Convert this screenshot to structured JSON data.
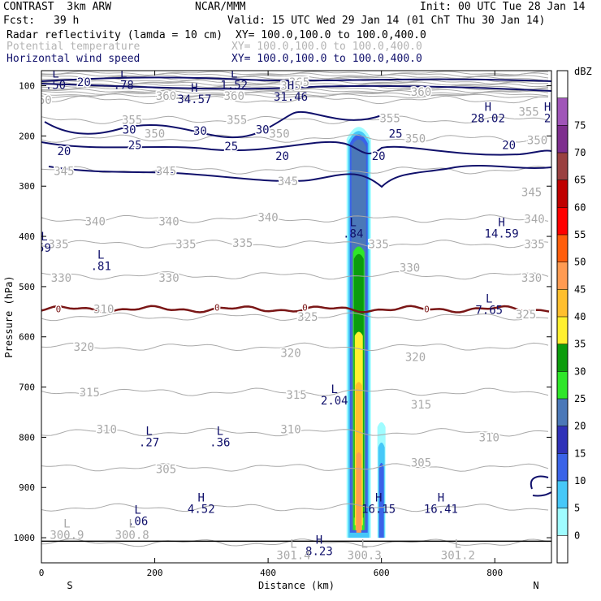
{
  "header": {
    "model": "CONTRAST  3km ARW",
    "org": "NCAR/MMM",
    "init": "Init: 00 UTC Tue 28 Jan 14",
    "fcst_label": "Fcst:",
    "fcst_value": "39 h",
    "valid": "Valid: 15 UTC Wed 29 Jan 14 (01 ChT Thu 30 Jan 14)"
  },
  "fields": [
    {
      "name": "Radar reflectivity (lamda = 10 cm)",
      "xy": "XY= 100.0,100.0 to 100.0,400.0"
    },
    {
      "name": "Potential temperature",
      "xy": "XY= 100.0,100.0 to 100.0,400.0"
    },
    {
      "name": "Horizontal wind speed",
      "xy": "XY= 100.0,100.0 to 100.0,400.0"
    }
  ],
  "colors": {
    "navy": "#10106b",
    "theta": "#a9a9a9",
    "zero_line": "#7a1616"
  },
  "chart_data": {
    "type": "contour",
    "xlabel": "Distance (km)",
    "ylabel": "Pressure (hPa)",
    "xlim": [
      0,
      900
    ],
    "ylim": [
      1050,
      70
    ],
    "x_ticks": [
      0,
      200,
      400,
      600,
      800
    ],
    "y_ticks": [
      100,
      200,
      300,
      400,
      500,
      600,
      700,
      800,
      900,
      1000
    ],
    "orientation": {
      "left": "S",
      "right": "N"
    },
    "colorbar": {
      "unit": "dBZ",
      "levels": [
        0,
        5,
        10,
        15,
        20,
        25,
        30,
        35,
        40,
        45,
        50,
        55,
        60,
        65,
        70,
        75
      ],
      "colors": [
        "#ffffff",
        "#9ffcff",
        "#46c8f8",
        "#3a63e8",
        "#2f31b8",
        "#4b78b8",
        "#2fe629",
        "#0c9c0c",
        "#fff030",
        "#ffbf2e",
        "#ff9b52",
        "#ff5d0c",
        "#ff0000",
        "#bf0000",
        "#9a4040",
        "#7e2e8e",
        "#a055b8",
        "#ffffff"
      ]
    },
    "theta_labels": [
      {
        "x": 0,
        "p": 128,
        "text": "360"
      },
      {
        "x": 220,
        "p": 120,
        "text": "360"
      },
      {
        "x": 340,
        "p": 120,
        "text": "360"
      },
      {
        "x": 670,
        "p": 112,
        "text": "360"
      },
      {
        "x": 455,
        "p": 93,
        "text": "365"
      },
      {
        "x": 440,
        "p": 100,
        "text": "365"
      },
      {
        "x": 160,
        "p": 168,
        "text": "355"
      },
      {
        "x": 345,
        "p": 168,
        "text": "355"
      },
      {
        "x": 615,
        "p": 165,
        "text": "355"
      },
      {
        "x": 860,
        "p": 152,
        "text": "355"
      },
      {
        "x": 200,
        "p": 195,
        "text": "350"
      },
      {
        "x": 420,
        "p": 195,
        "text": "350"
      },
      {
        "x": 660,
        "p": 205,
        "text": "350"
      },
      {
        "x": 875,
        "p": 208,
        "text": "350"
      },
      {
        "x": 40,
        "p": 270,
        "text": "345"
      },
      {
        "x": 220,
        "p": 270,
        "text": "345"
      },
      {
        "x": 435,
        "p": 290,
        "text": "345"
      },
      {
        "x": 865,
        "p": 312,
        "text": "345"
      },
      {
        "x": 95,
        "p": 370,
        "text": "340"
      },
      {
        "x": 225,
        "p": 370,
        "text": "340"
      },
      {
        "x": 400,
        "p": 362,
        "text": "340"
      },
      {
        "x": 870,
        "p": 365,
        "text": "340"
      },
      {
        "x": 30,
        "p": 415,
        "text": "335"
      },
      {
        "x": 255,
        "p": 415,
        "text": "335"
      },
      {
        "x": 355,
        "p": 413,
        "text": "335"
      },
      {
        "x": 595,
        "p": 415,
        "text": "335"
      },
      {
        "x": 870,
        "p": 415,
        "text": "335"
      },
      {
        "x": 35,
        "p": 482,
        "text": "330"
      },
      {
        "x": 225,
        "p": 482,
        "text": "330"
      },
      {
        "x": 650,
        "p": 462,
        "text": "330"
      },
      {
        "x": 865,
        "p": 482,
        "text": "330"
      },
      {
        "x": 110,
        "p": 545,
        "text": "310"
      },
      {
        "x": 470,
        "p": 560,
        "text": "325"
      },
      {
        "x": 855,
        "p": 555,
        "text": "325"
      },
      {
        "x": 75,
        "p": 620,
        "text": "320"
      },
      {
        "x": 440,
        "p": 632,
        "text": "320"
      },
      {
        "x": 660,
        "p": 640,
        "text": "320"
      },
      {
        "x": 85,
        "p": 710,
        "text": "315"
      },
      {
        "x": 450,
        "p": 715,
        "text": "315"
      },
      {
        "x": 670,
        "p": 735,
        "text": "315"
      },
      {
        "x": 115,
        "p": 784,
        "text": "310"
      },
      {
        "x": 440,
        "p": 784,
        "text": "310"
      },
      {
        "x": 790,
        "p": 800,
        "text": "310"
      },
      {
        "x": 220,
        "p": 863,
        "text": "305"
      },
      {
        "x": 670,
        "p": 850,
        "text": "305"
      }
    ],
    "wind_labels": [
      {
        "x": 75,
        "p": 93,
        "text": "20"
      },
      {
        "x": 155,
        "p": 187,
        "text": "30"
      },
      {
        "x": 280,
        "p": 190,
        "text": "30"
      },
      {
        "x": 390,
        "p": 187,
        "text": "30"
      },
      {
        "x": 165,
        "p": 218,
        "text": "25"
      },
      {
        "x": 335,
        "p": 220,
        "text": "25"
      },
      {
        "x": 625,
        "p": 195,
        "text": "25"
      },
      {
        "x": 40,
        "p": 230,
        "text": "20"
      },
      {
        "x": 425,
        "p": 240,
        "text": "20"
      },
      {
        "x": 595,
        "p": 240,
        "text": "20"
      },
      {
        "x": 825,
        "p": 218,
        "text": "20"
      }
    ],
    "extrema": [
      {
        "letter": "L",
        "x": 25,
        "p": 84,
        "value": ".50",
        "color": "navy"
      },
      {
        "letter": "L",
        "x": 145,
        "p": 84,
        "value": ".78",
        "color": "navy"
      },
      {
        "letter": "L",
        "x": 340,
        "p": 84,
        "value": "1.52",
        "color": "navy"
      },
      {
        "letter": "H",
        "x": 270,
        "p": 112,
        "value": "34.57",
        "color": "navy"
      },
      {
        "letter": "H",
        "x": 440,
        "p": 107,
        "value": "31.46",
        "color": "navy"
      },
      {
        "letter": "H",
        "x": 788,
        "p": 150,
        "value": "28.02",
        "color": "navy"
      },
      {
        "letter": "H",
        "x": 893,
        "p": 150,
        "value": "2",
        "color": "navy"
      },
      {
        "letter": "L",
        "x": 550,
        "p": 380,
        "value": ".84",
        "color": "navy"
      },
      {
        "letter": "H",
        "x": 812,
        "p": 380,
        "value": "14.59",
        "color": "navy"
      },
      {
        "letter": "L",
        "x": 5,
        "p": 408,
        "value": "59",
        "color": "navy"
      },
      {
        "letter": "L",
        "x": 105,
        "p": 444,
        "value": ".81",
        "color": "navy"
      },
      {
        "letter": "L",
        "x": 790,
        "p": 532,
        "value": "7.65",
        "color": "navy"
      },
      {
        "letter": "L",
        "x": 517,
        "p": 712,
        "value": "2.04",
        "color": "navy"
      },
      {
        "letter": "L",
        "x": 190,
        "p": 795,
        "value": ".27",
        "color": "navy"
      },
      {
        "letter": "L",
        "x": 315,
        "p": 795,
        "value": ".36",
        "color": "navy"
      },
      {
        "letter": "H",
        "x": 282,
        "p": 928,
        "value": "4.52",
        "color": "navy"
      },
      {
        "letter": "H",
        "x": 595,
        "p": 928,
        "value": "16.15",
        "color": "navy"
      },
      {
        "letter": "H",
        "x": 705,
        "p": 928,
        "value": "16.41",
        "color": "navy"
      },
      {
        "letter": "L",
        "x": 170,
        "p": 952,
        "value": ".06",
        "color": "navy"
      },
      {
        "letter": "H",
        "x": 490,
        "p": 1012,
        "value": "8.23",
        "color": "navy"
      },
      {
        "letter": "L",
        "x": 45,
        "p": 980,
        "value": "300.9",
        "color": "gray"
      },
      {
        "letter": "L",
        "x": 160,
        "p": 980,
        "value": "300.8",
        "color": "gray"
      },
      {
        "letter": "L",
        "x": 445,
        "p": 1020,
        "value": "301.4",
        "color": "gray"
      },
      {
        "letter": "L",
        "x": 570,
        "p": 1020,
        "value": "300.3",
        "color": "gray"
      },
      {
        "letter": "L",
        "x": 735,
        "p": 1020,
        "value": "301.2",
        "color": "gray"
      }
    ],
    "zero_contour": {
      "level": 0,
      "labels": [
        {
          "x": 30,
          "p": 545,
          "text": "0"
        },
        {
          "x": 310,
          "p": 541,
          "text": "0"
        },
        {
          "x": 465,
          "p": 541,
          "text": "0"
        },
        {
          "x": 680,
          "p": 545,
          "text": "0"
        }
      ]
    },
    "reflectivity_shaft": {
      "x_center": 560,
      "top_p": 182,
      "bottom_p": 1000
    },
    "reflectivity_secondary": {
      "x_center": 600,
      "top_p": 770,
      "bottom_p": 1000
    }
  }
}
